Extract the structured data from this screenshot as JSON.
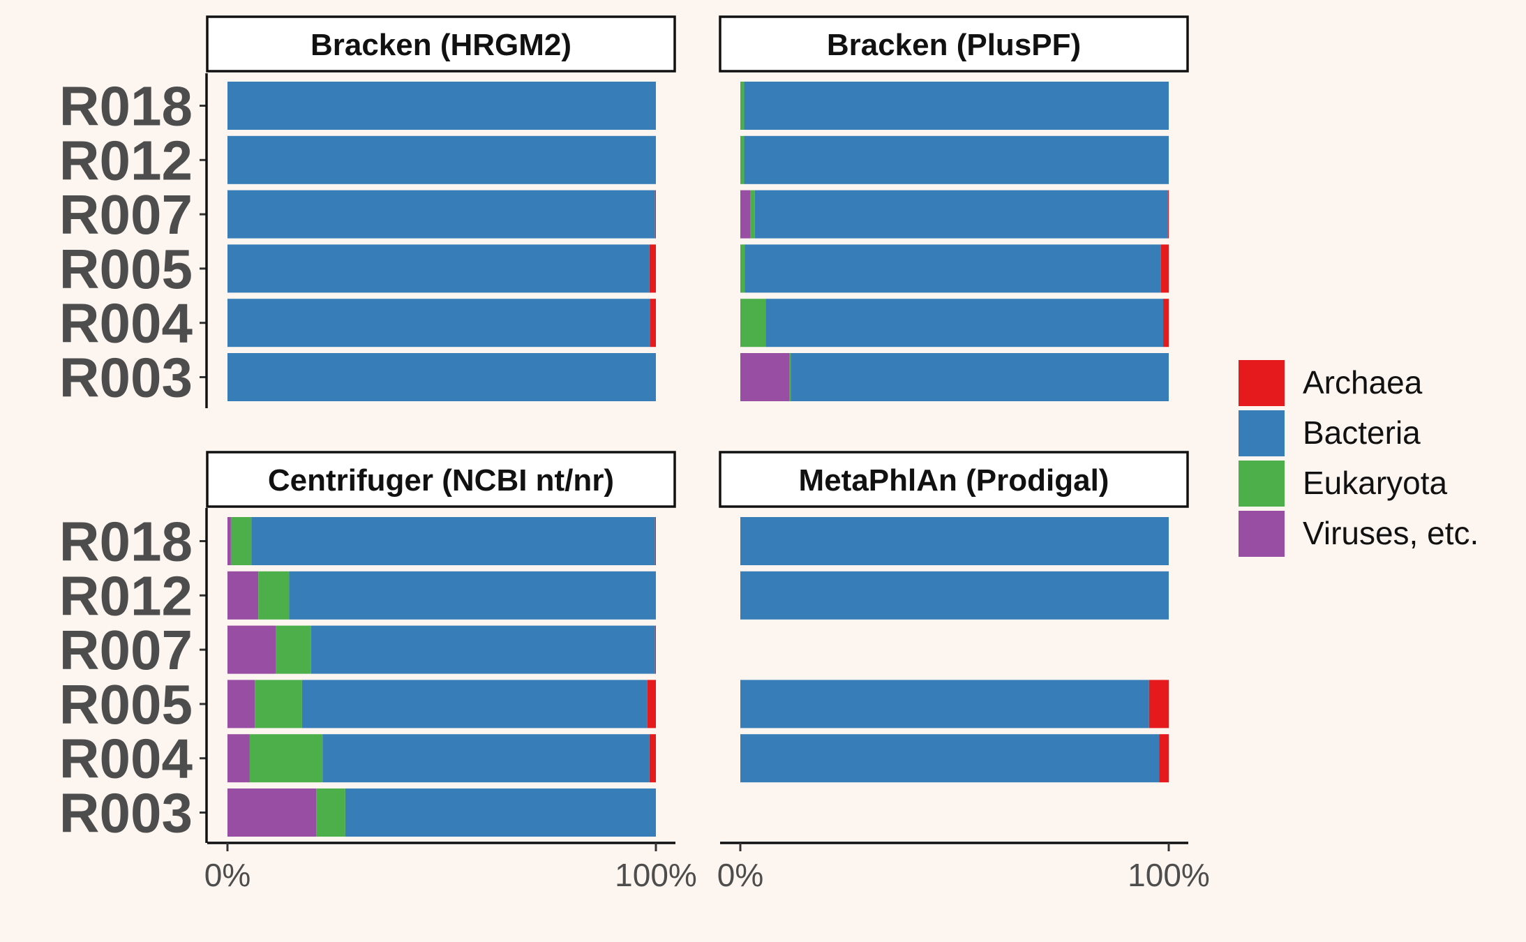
{
  "chart_data": {
    "type": "bar",
    "orientation": "horizontal",
    "stacked": true,
    "normalized": true,
    "samples": [
      "R018",
      "R012",
      "R007",
      "R005",
      "R004",
      "R003"
    ],
    "x_tick_labels": [
      "0%",
      "100%"
    ],
    "xlim": [
      0,
      100
    ],
    "legend_position": "right",
    "grid": false,
    "legend": [
      {
        "name": "Archaea",
        "color": "#e41a1c"
      },
      {
        "name": "Bacteria",
        "color": "#377eb8"
      },
      {
        "name": "Eukaryota",
        "color": "#4daf4a"
      },
      {
        "name": "Viruses, etc.",
        "color": "#984ea3"
      }
    ],
    "panels": [
      {
        "title": "Bracken (HRGM2)",
        "bars": {
          "R018": {
            "Viruses, etc.": 0,
            "Eukaryota": 0,
            "Bacteria": 100,
            "Archaea": 0
          },
          "R012": {
            "Viruses, etc.": 0,
            "Eukaryota": 0,
            "Bacteria": 100,
            "Archaea": 0
          },
          "R007": {
            "Viruses, etc.": 0,
            "Eukaryota": 0,
            "Bacteria": 99.8,
            "Archaea": 0.2
          },
          "R005": {
            "Viruses, etc.": 0,
            "Eukaryota": 0,
            "Bacteria": 98.5,
            "Archaea": 1.5
          },
          "R004": {
            "Viruses, etc.": 0,
            "Eukaryota": 0,
            "Bacteria": 98.7,
            "Archaea": 1.3
          },
          "R003": {
            "Viruses, etc.": 0,
            "Eukaryota": 0,
            "Bacteria": 100,
            "Archaea": 0
          }
        }
      },
      {
        "title": "Bracken (PlusPF)",
        "bars": {
          "R018": {
            "Viruses, etc.": 0,
            "Eukaryota": 0.9,
            "Bacteria": 99.1,
            "Archaea": 0
          },
          "R012": {
            "Viruses, etc.": 0,
            "Eukaryota": 0.9,
            "Bacteria": 99.1,
            "Archaea": 0
          },
          "R007": {
            "Viruses, etc.": 2.4,
            "Eukaryota": 1.0,
            "Bacteria": 96.4,
            "Archaea": 0.2
          },
          "R005": {
            "Viruses, etc.": 0,
            "Eukaryota": 1.0,
            "Bacteria": 97.2,
            "Archaea": 1.8
          },
          "R004": {
            "Viruses, etc.": 0,
            "Eukaryota": 5.9,
            "Bacteria": 92.8,
            "Archaea": 1.3
          },
          "R003": {
            "Viruses, etc.": 11.4,
            "Eukaryota": 0.4,
            "Bacteria": 88.2,
            "Archaea": 0
          }
        }
      },
      {
        "title": "Centrifuger (NCBI nt/nr)",
        "bars": {
          "R018": {
            "Viruses, etc.": 0.8,
            "Eukaryota": 4.8,
            "Bacteria": 94.2,
            "Archaea": 0.2
          },
          "R012": {
            "Viruses, etc.": 7.2,
            "Eukaryota": 7.2,
            "Bacteria": 85.6,
            "Archaea": 0
          },
          "R007": {
            "Viruses, etc.": 11.3,
            "Eukaryota": 8.2,
            "Bacteria": 80.3,
            "Archaea": 0.2
          },
          "R005": {
            "Viruses, etc.": 6.4,
            "Eukaryota": 11.0,
            "Bacteria": 80.6,
            "Archaea": 2.0
          },
          "R004": {
            "Viruses, etc.": 5.2,
            "Eukaryota": 17.0,
            "Bacteria": 76.3,
            "Archaea": 1.5
          },
          "R003": {
            "Viruses, etc.": 20.7,
            "Eukaryota": 6.8,
            "Bacteria": 72.5,
            "Archaea": 0
          }
        }
      },
      {
        "title": "MetaPhlAn (Prodigal)",
        "bars": {
          "R018": {
            "Viruses, etc.": 0,
            "Eukaryota": 0,
            "Bacteria": 100,
            "Archaea": 0
          },
          "R012": {
            "Viruses, etc.": 0,
            "Eukaryota": 0,
            "Bacteria": 100,
            "Archaea": 0
          },
          "R007": null,
          "R005": {
            "Viruses, etc.": 0,
            "Eukaryota": 0,
            "Bacteria": 95.4,
            "Archaea": 4.6
          },
          "R004": {
            "Viruses, etc.": 0,
            "Eukaryota": 0,
            "Bacteria": 97.8,
            "Archaea": 2.2
          },
          "R003": null
        }
      }
    ]
  }
}
